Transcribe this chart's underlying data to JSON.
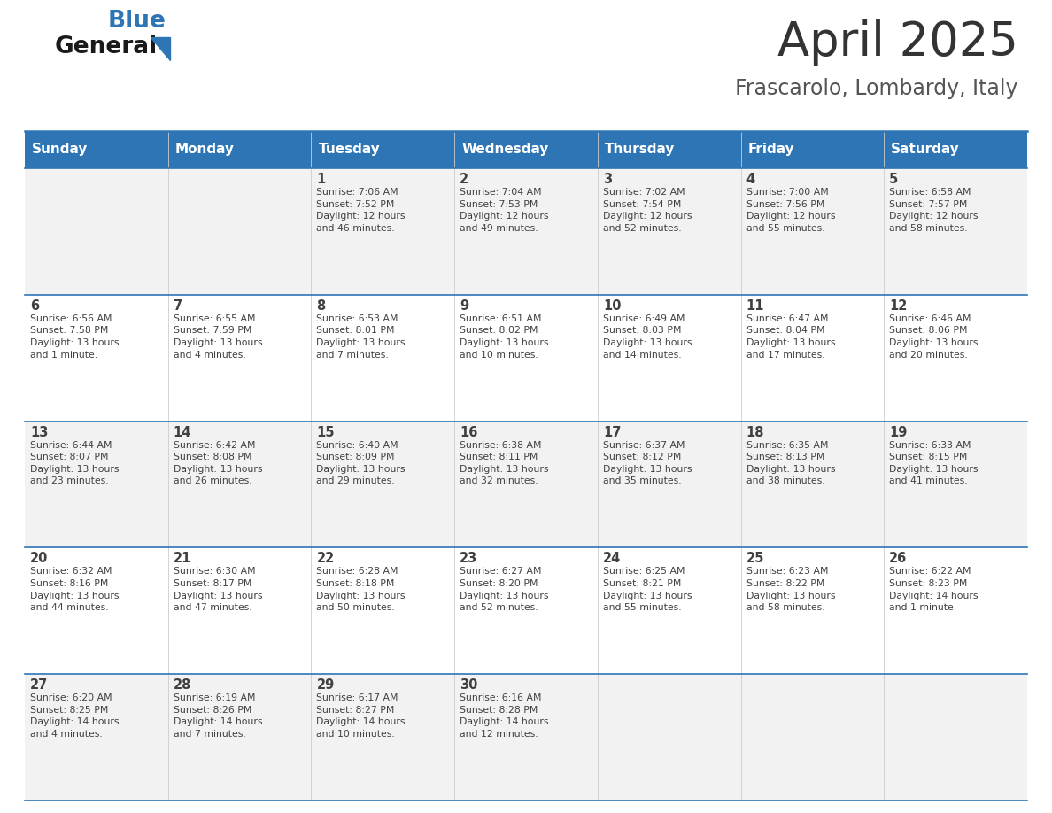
{
  "title": "April 2025",
  "subtitle": "Frascarolo, Lombardy, Italy",
  "header_color": "#2E75B6",
  "header_text_color": "#FFFFFF",
  "cell_bg_even": "#F2F2F2",
  "cell_bg_odd": "#FFFFFF",
  "border_color": "#2E75B6",
  "text_color": "#404040",
  "days_of_week": [
    "Sunday",
    "Monday",
    "Tuesday",
    "Wednesday",
    "Thursday",
    "Friday",
    "Saturday"
  ],
  "weeks": [
    [
      {
        "day": "",
        "info": ""
      },
      {
        "day": "",
        "info": ""
      },
      {
        "day": "1",
        "info": "Sunrise: 7:06 AM\nSunset: 7:52 PM\nDaylight: 12 hours\nand 46 minutes."
      },
      {
        "day": "2",
        "info": "Sunrise: 7:04 AM\nSunset: 7:53 PM\nDaylight: 12 hours\nand 49 minutes."
      },
      {
        "day": "3",
        "info": "Sunrise: 7:02 AM\nSunset: 7:54 PM\nDaylight: 12 hours\nand 52 minutes."
      },
      {
        "day": "4",
        "info": "Sunrise: 7:00 AM\nSunset: 7:56 PM\nDaylight: 12 hours\nand 55 minutes."
      },
      {
        "day": "5",
        "info": "Sunrise: 6:58 AM\nSunset: 7:57 PM\nDaylight: 12 hours\nand 58 minutes."
      }
    ],
    [
      {
        "day": "6",
        "info": "Sunrise: 6:56 AM\nSunset: 7:58 PM\nDaylight: 13 hours\nand 1 minute."
      },
      {
        "day": "7",
        "info": "Sunrise: 6:55 AM\nSunset: 7:59 PM\nDaylight: 13 hours\nand 4 minutes."
      },
      {
        "day": "8",
        "info": "Sunrise: 6:53 AM\nSunset: 8:01 PM\nDaylight: 13 hours\nand 7 minutes."
      },
      {
        "day": "9",
        "info": "Sunrise: 6:51 AM\nSunset: 8:02 PM\nDaylight: 13 hours\nand 10 minutes."
      },
      {
        "day": "10",
        "info": "Sunrise: 6:49 AM\nSunset: 8:03 PM\nDaylight: 13 hours\nand 14 minutes."
      },
      {
        "day": "11",
        "info": "Sunrise: 6:47 AM\nSunset: 8:04 PM\nDaylight: 13 hours\nand 17 minutes."
      },
      {
        "day": "12",
        "info": "Sunrise: 6:46 AM\nSunset: 8:06 PM\nDaylight: 13 hours\nand 20 minutes."
      }
    ],
    [
      {
        "day": "13",
        "info": "Sunrise: 6:44 AM\nSunset: 8:07 PM\nDaylight: 13 hours\nand 23 minutes."
      },
      {
        "day": "14",
        "info": "Sunrise: 6:42 AM\nSunset: 8:08 PM\nDaylight: 13 hours\nand 26 minutes."
      },
      {
        "day": "15",
        "info": "Sunrise: 6:40 AM\nSunset: 8:09 PM\nDaylight: 13 hours\nand 29 minutes."
      },
      {
        "day": "16",
        "info": "Sunrise: 6:38 AM\nSunset: 8:11 PM\nDaylight: 13 hours\nand 32 minutes."
      },
      {
        "day": "17",
        "info": "Sunrise: 6:37 AM\nSunset: 8:12 PM\nDaylight: 13 hours\nand 35 minutes."
      },
      {
        "day": "18",
        "info": "Sunrise: 6:35 AM\nSunset: 8:13 PM\nDaylight: 13 hours\nand 38 minutes."
      },
      {
        "day": "19",
        "info": "Sunrise: 6:33 AM\nSunset: 8:15 PM\nDaylight: 13 hours\nand 41 minutes."
      }
    ],
    [
      {
        "day": "20",
        "info": "Sunrise: 6:32 AM\nSunset: 8:16 PM\nDaylight: 13 hours\nand 44 minutes."
      },
      {
        "day": "21",
        "info": "Sunrise: 6:30 AM\nSunset: 8:17 PM\nDaylight: 13 hours\nand 47 minutes."
      },
      {
        "day": "22",
        "info": "Sunrise: 6:28 AM\nSunset: 8:18 PM\nDaylight: 13 hours\nand 50 minutes."
      },
      {
        "day": "23",
        "info": "Sunrise: 6:27 AM\nSunset: 8:20 PM\nDaylight: 13 hours\nand 52 minutes."
      },
      {
        "day": "24",
        "info": "Sunrise: 6:25 AM\nSunset: 8:21 PM\nDaylight: 13 hours\nand 55 minutes."
      },
      {
        "day": "25",
        "info": "Sunrise: 6:23 AM\nSunset: 8:22 PM\nDaylight: 13 hours\nand 58 minutes."
      },
      {
        "day": "26",
        "info": "Sunrise: 6:22 AM\nSunset: 8:23 PM\nDaylight: 14 hours\nand 1 minute."
      }
    ],
    [
      {
        "day": "27",
        "info": "Sunrise: 6:20 AM\nSunset: 8:25 PM\nDaylight: 14 hours\nand 4 minutes."
      },
      {
        "day": "28",
        "info": "Sunrise: 6:19 AM\nSunset: 8:26 PM\nDaylight: 14 hours\nand 7 minutes."
      },
      {
        "day": "29",
        "info": "Sunrise: 6:17 AM\nSunset: 8:27 PM\nDaylight: 14 hours\nand 10 minutes."
      },
      {
        "day": "30",
        "info": "Sunrise: 6:16 AM\nSunset: 8:28 PM\nDaylight: 14 hours\nand 12 minutes."
      },
      {
        "day": "",
        "info": ""
      },
      {
        "day": "",
        "info": ""
      },
      {
        "day": "",
        "info": ""
      }
    ]
  ]
}
